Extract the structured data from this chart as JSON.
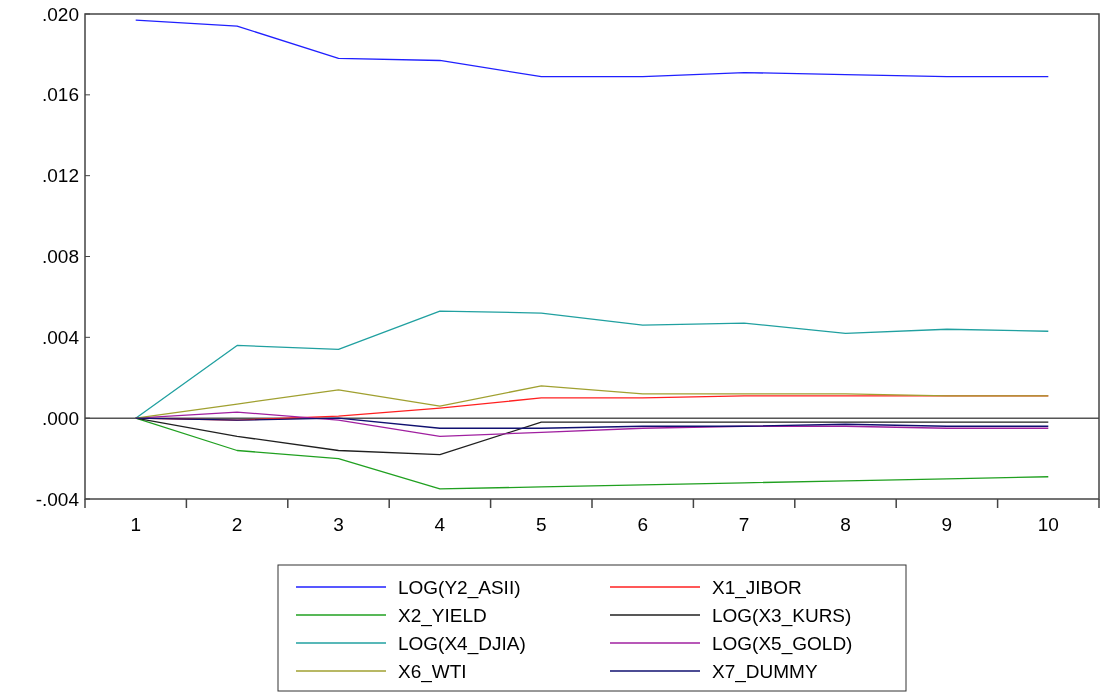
{
  "chart_data": {
    "type": "line",
    "categories": [
      "1",
      "2",
      "3",
      "4",
      "5",
      "6",
      "7",
      "8",
      "9",
      "10"
    ],
    "ylim": [
      -0.004,
      0.02
    ],
    "yticks": [
      {
        "value": -0.004,
        "label": "-.004"
      },
      {
        "value": 0,
        "label": ".000"
      },
      {
        "value": 0.004,
        "label": ".004"
      },
      {
        "value": 0.008,
        "label": ".008"
      },
      {
        "value": 0.012,
        "label": ".012"
      },
      {
        "value": 0.016,
        "label": ".016"
      },
      {
        "value": 0.02,
        "label": ".020"
      }
    ],
    "ref_lines": [
      {
        "axis": "y",
        "value": 0,
        "color": "#555555"
      }
    ],
    "legend": "bottom",
    "grid": false,
    "marker": "none",
    "line_style": "solid",
    "series": [
      {
        "name": "LOG(Y2_ASII)",
        "color": "#2020ff",
        "values": [
          0.0197,
          0.0194,
          0.0178,
          0.0177,
          0.0169,
          0.0169,
          0.0171,
          0.017,
          0.0169,
          0.0169
        ]
      },
      {
        "name": "X1_JIBOR",
        "color": "#ff2020",
        "values": [
          0,
          -0.0001,
          0.0001,
          0.0005,
          0.001,
          0.001,
          0.0011,
          0.0011,
          0.0011,
          0.0011
        ]
      },
      {
        "name": "X2_YIELD",
        "color": "#20a020",
        "values": [
          0,
          -0.0016,
          -0.002,
          -0.0035,
          -0.0034,
          -0.0033,
          -0.0032,
          -0.0031,
          -0.003,
          -0.0029
        ]
      },
      {
        "name": "LOG(X3_KURS)",
        "color": "#202020",
        "values": [
          0,
          -0.0009,
          -0.0016,
          -0.0018,
          -0.0002,
          -0.0002,
          -0.0002,
          -0.0002,
          -0.0002,
          -0.0002
        ]
      },
      {
        "name": "LOG(X4_DJIA)",
        "color": "#20a0a0",
        "values": [
          0,
          0.0036,
          0.0034,
          0.0053,
          0.0052,
          0.0046,
          0.0047,
          0.0042,
          0.0044,
          0.0043
        ]
      },
      {
        "name": "LOG(X5_GOLD)",
        "color": "#a020a0",
        "values": [
          0,
          0.0003,
          -0.0001,
          -0.0009,
          -0.0007,
          -0.0005,
          -0.0004,
          -0.0004,
          -0.0005,
          -0.0005
        ]
      },
      {
        "name": "X6_WTI",
        "color": "#a0a030",
        "values": [
          0,
          0.0007,
          0.0014,
          0.0006,
          0.0016,
          0.0012,
          0.0012,
          0.0012,
          0.0011,
          0.0011
        ]
      },
      {
        "name": "X7_DUMMY",
        "color": "#101070",
        "values": [
          0,
          -0.0001,
          0,
          -0.0005,
          -0.0005,
          -0.0004,
          -0.0004,
          -0.0003,
          -0.0004,
          -0.0004
        ]
      }
    ]
  }
}
